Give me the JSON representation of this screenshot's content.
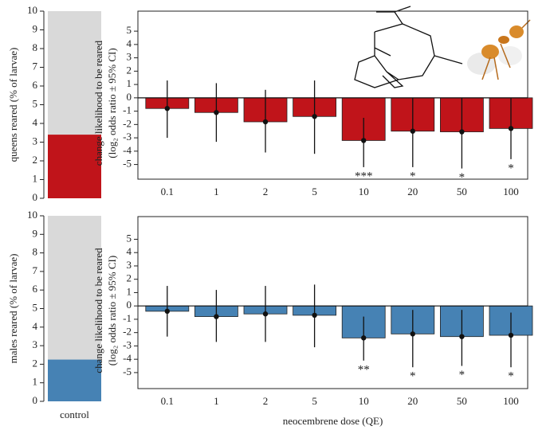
{
  "chart_data": [
    {
      "type": "stacked-control",
      "ylabel": "queens reared (% of larvae)",
      "categories": [
        null
      ],
      "values": [
        3.4
      ],
      "color": "#c0141a",
      "background": "#d9d9d9",
      "ylim": [
        0,
        10
      ],
      "yticks": [
        0,
        1,
        2,
        3,
        4,
        5,
        6,
        7,
        8,
        9,
        10
      ]
    },
    {
      "type": "bar-ci",
      "ylabel": "change likelihood to be reared",
      "ylabel2": "(log₂ odds ratio ± 95% CI)",
      "categories": [
        "0.1",
        "1",
        "2",
        "5",
        "10",
        "20",
        "50",
        "100"
      ],
      "values": [
        -0.8,
        -1.1,
        -1.8,
        -1.4,
        -3.2,
        -2.5,
        -2.55,
        -2.3
      ],
      "ci_low": [
        -3.0,
        -3.3,
        -4.1,
        -4.2,
        -5.2,
        -5.2,
        -5.3,
        -4.6
      ],
      "ci_high": [
        1.3,
        1.1,
        0.6,
        1.3,
        -1.5,
        0.0,
        0.0,
        0.0
      ],
      "annotations": [
        null,
        null,
        null,
        null,
        "***",
        "*",
        "*",
        "*"
      ],
      "color": "#c0141a",
      "ylim": [
        -6.1,
        6.5
      ],
      "yticks": [
        -5,
        -4,
        -3,
        -2,
        -1,
        0,
        1,
        2,
        3,
        4,
        5
      ]
    },
    {
      "type": "stacked-control",
      "ylabel": "males reared (% of larvae)",
      "categories": [
        "control"
      ],
      "values": [
        2.25
      ],
      "color": "#4682b4",
      "background": "#d9d9d9",
      "ylim": [
        0,
        10
      ],
      "yticks": [
        0,
        1,
        2,
        3,
        4,
        5,
        6,
        7,
        8,
        9,
        10
      ]
    },
    {
      "type": "bar-ci",
      "ylabel": "change likelihood to be reared",
      "ylabel2": "(log₂ odds ratio ± 95% CI)",
      "xlabel": "neocembrene dose (QE)",
      "categories": [
        "0.1",
        "1",
        "2",
        "5",
        "10",
        "20",
        "50",
        "100"
      ],
      "values": [
        -0.4,
        -0.8,
        -0.6,
        -0.7,
        -2.4,
        -2.1,
        -2.3,
        -2.2
      ],
      "ci_low": [
        -2.3,
        -2.7,
        -2.7,
        -3.1,
        -4.1,
        -4.6,
        -4.5,
        -4.6
      ],
      "ci_high": [
        1.5,
        1.2,
        1.5,
        1.6,
        -0.8,
        -0.3,
        -0.3,
        -0.5
      ],
      "annotations": [
        null,
        null,
        null,
        null,
        "**",
        "*",
        "*",
        "*"
      ],
      "color": "#4682b4",
      "ylim": [
        -6.2,
        6.7
      ],
      "yticks": [
        -5,
        -4,
        -3,
        -2,
        -1,
        0,
        1,
        2,
        3,
        4,
        5
      ]
    }
  ]
}
